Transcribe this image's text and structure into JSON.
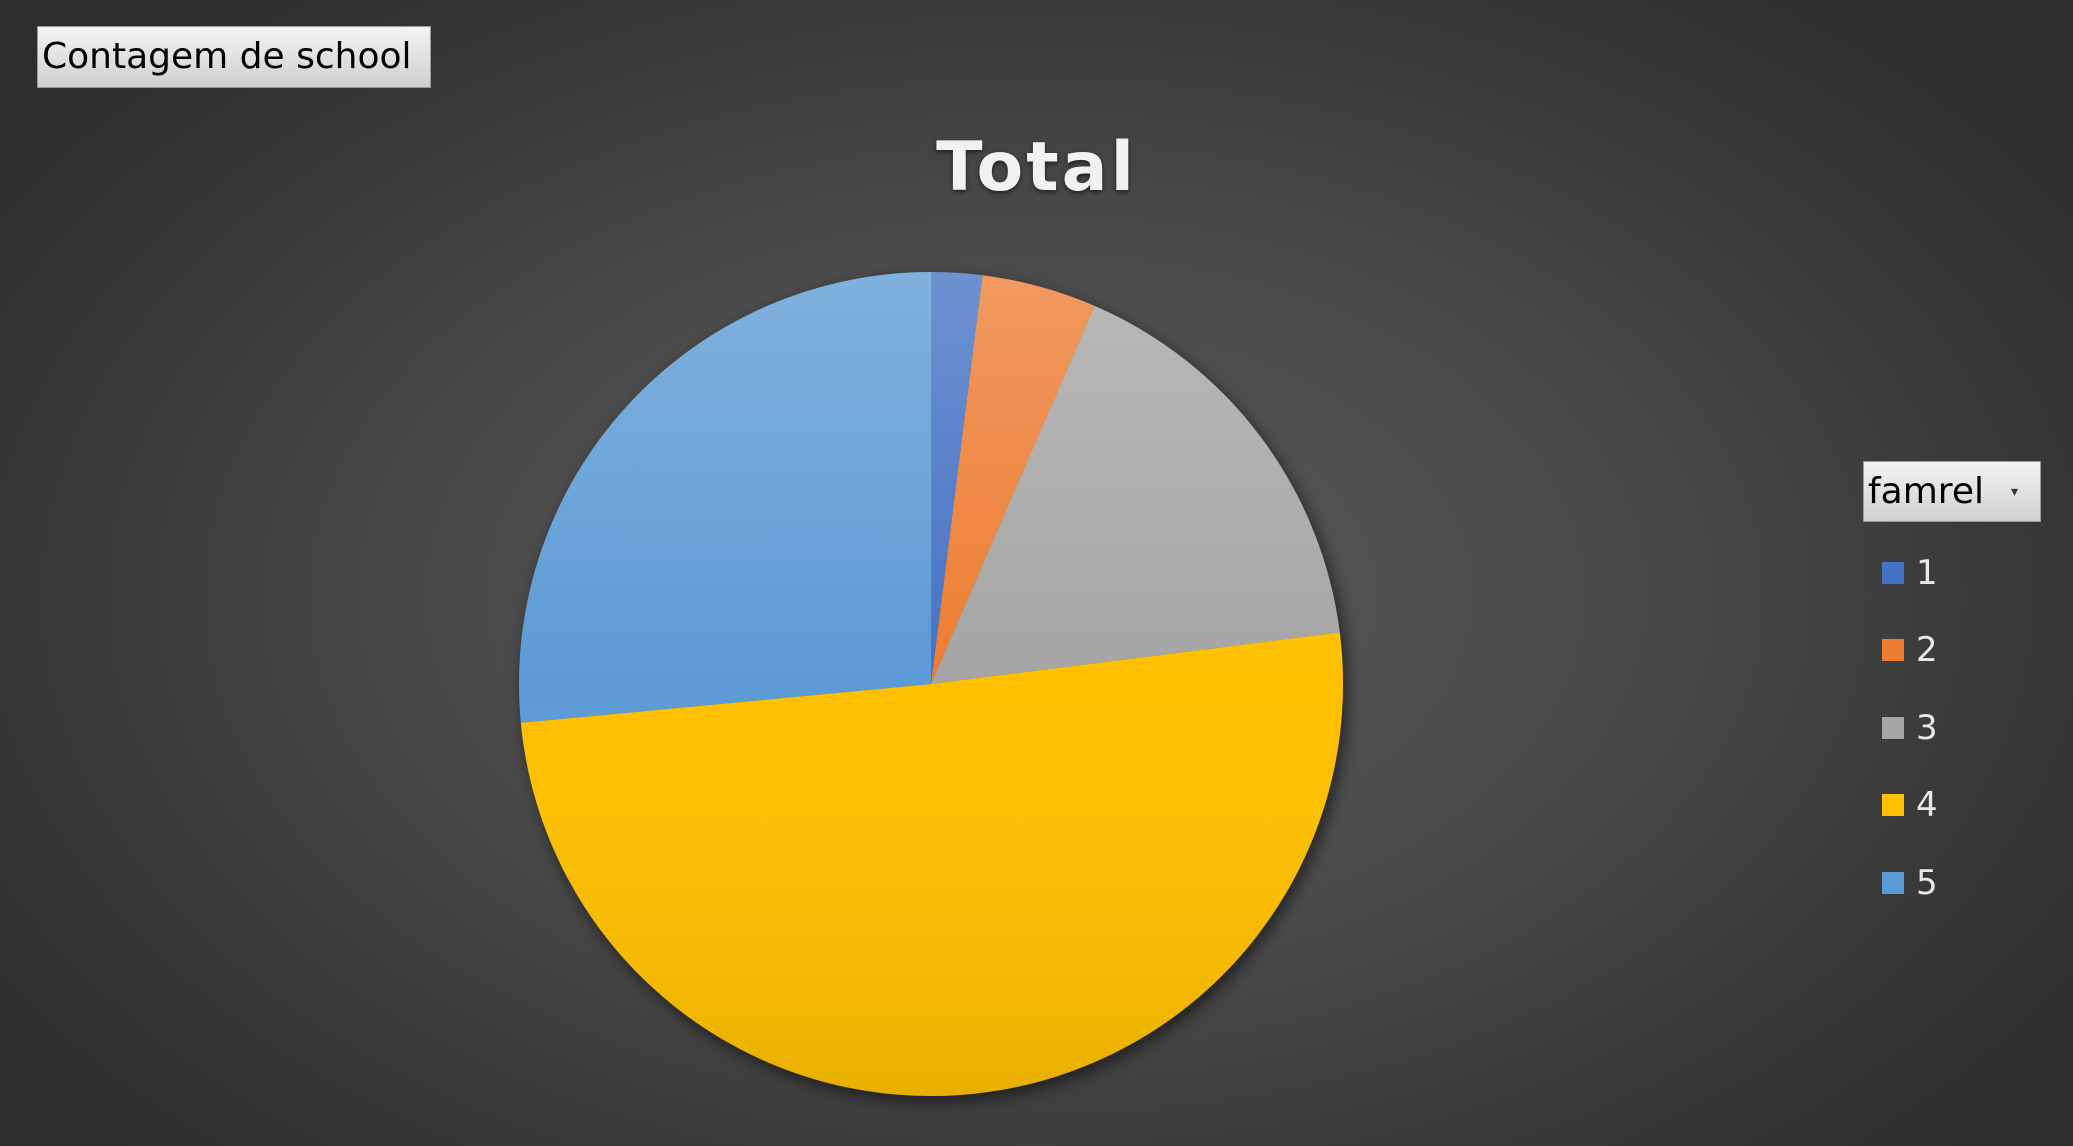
{
  "pivot": {
    "value_field_label": "Contagem de school",
    "category_field_label": "famrel",
    "dropdown_icon": "dropdown-arrow-icon"
  },
  "colors": {
    "background": "#404040",
    "title": "#f2f2f2"
  },
  "chart_data": {
    "type": "pie",
    "title": "Total",
    "legend_title": "famrel",
    "legend_position": "right",
    "categories": [
      "1",
      "2",
      "3",
      "4",
      "5"
    ],
    "values": [
      2,
      4.5,
      16.5,
      50.5,
      26.5
    ],
    "colors": [
      "#4472c4",
      "#ed7d31",
      "#a5a5a5",
      "#ffc000",
      "#5b9bd5"
    ]
  }
}
